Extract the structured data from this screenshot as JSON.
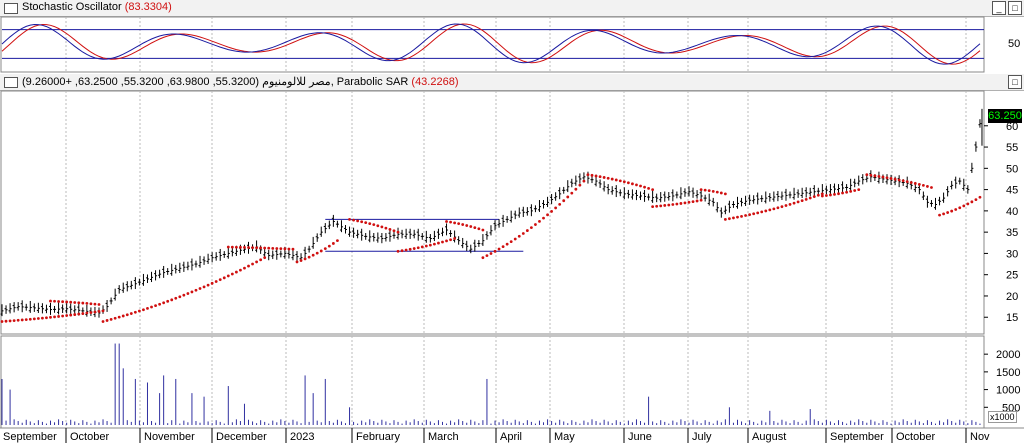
{
  "stoch": {
    "title": "Stochastic Oscillator",
    "value": "(83.3304)",
    "scale_label": "50"
  },
  "price": {
    "title_prefix": "مصر للالومنيوم",
    "ohlc": "(55.3200, 63.9800, 55.3200, 63.2500, +9.26000), Parabolic SAR",
    "sar_value": "(43.2268)",
    "last_price": "63.250"
  },
  "volume": {
    "multiplier": "x1000"
  },
  "colors": {
    "sar": "#d01010",
    "bar": "#000000",
    "volume": "#3030a0",
    "stoch_k": "#1a1aa0",
    "stoch_d": "#d01010",
    "channel": "#1a1aa0",
    "last_price_bg": "#000000",
    "last_price_fg": "#00ff00"
  },
  "chart_data": [
    {
      "type": "line",
      "name": "stochastic",
      "ylim": [
        0,
        100
      ],
      "levels": [
        20,
        80
      ],
      "yticks": [
        50
      ]
    },
    {
      "type": "ohlc",
      "name": "price",
      "ylim": [
        12,
        67
      ],
      "yticks": [
        15,
        20,
        25,
        30,
        35,
        40,
        45,
        50,
        55,
        60
      ],
      "months": [
        "September",
        "October",
        "November",
        "December",
        "2023",
        "February",
        "March",
        "April",
        "May",
        "June",
        "July",
        "August",
        "September",
        "October",
        "Nov"
      ],
      "channel": {
        "top": 38,
        "bottom": 30.5
      },
      "close_path": [
        [
          0,
          16.5
        ],
        [
          8,
          17.5
        ],
        [
          16,
          17.2
        ],
        [
          24,
          16.8
        ],
        [
          32,
          17.0
        ],
        [
          40,
          16.5
        ],
        [
          48,
          16.0
        ],
        [
          52,
          17.5
        ],
        [
          58,
          21.5
        ],
        [
          64,
          22.5
        ],
        [
          72,
          24.0
        ],
        [
          80,
          25.5
        ],
        [
          88,
          26.5
        ],
        [
          96,
          27.5
        ],
        [
          104,
          29.0
        ],
        [
          112,
          30.0
        ],
        [
          120,
          31.0
        ],
        [
          126,
          31.5
        ],
        [
          132,
          29.5
        ],
        [
          140,
          30.0
        ],
        [
          148,
          29.0
        ],
        [
          152,
          31.0
        ],
        [
          158,
          35.0
        ],
        [
          164,
          37.5
        ],
        [
          172,
          35.0
        ],
        [
          180,
          34.0
        ],
        [
          188,
          33.5
        ],
        [
          196,
          34.5
        ],
        [
          204,
          34.5
        ],
        [
          212,
          33.5
        ],
        [
          220,
          35.5
        ],
        [
          226,
          33.0
        ],
        [
          232,
          31.0
        ],
        [
          238,
          33.0
        ],
        [
          244,
          36.5
        ],
        [
          250,
          38.0
        ],
        [
          256,
          39.5
        ],
        [
          262,
          40.0
        ],
        [
          270,
          42.0
        ],
        [
          276,
          44.0
        ],
        [
          282,
          46.5
        ],
        [
          288,
          48.0
        ],
        [
          294,
          47.0
        ],
        [
          300,
          45.0
        ],
        [
          308,
          44.0
        ],
        [
          316,
          43.5
        ],
        [
          324,
          43.0
        ],
        [
          332,
          43.5
        ],
        [
          340,
          44.5
        ],
        [
          346,
          43.5
        ],
        [
          352,
          42.0
        ],
        [
          356,
          39.5
        ],
        [
          362,
          41.5
        ],
        [
          370,
          42.5
        ],
        [
          378,
          43.0
        ],
        [
          386,
          43.5
        ],
        [
          394,
          44.0
        ],
        [
          402,
          44.5
        ],
        [
          410,
          45.0
        ],
        [
          418,
          45.5
        ],
        [
          424,
          47.0
        ],
        [
          430,
          48.0
        ],
        [
          436,
          47.5
        ],
        [
          442,
          47.0
        ],
        [
          448,
          46.5
        ],
        [
          454,
          45.0
        ],
        [
          458,
          42.0
        ],
        [
          462,
          41.5
        ],
        [
          466,
          43.0
        ],
        [
          470,
          46.0
        ],
        [
          474,
          47.0
        ],
        [
          478,
          45.0
        ],
        [
          482,
          55.0
        ],
        [
          485,
          63.25
        ]
      ],
      "sar": [
        {
          "from": [
            0,
            14.0
          ],
          "to": [
            50,
            16.5
          ]
        },
        {
          "from": [
            24,
            18.8
          ],
          "to": [
            48,
            18.0
          ]
        },
        {
          "from": [
            50,
            14.0
          ],
          "to": [
            130,
            29.0
          ]
        },
        {
          "from": [
            112,
            31.5
          ],
          "to": [
            144,
            31.0
          ]
        },
        {
          "from": [
            146,
            28.0
          ],
          "to": [
            166,
            33.0
          ]
        },
        {
          "from": [
            172,
            38.0
          ],
          "to": [
            196,
            35.0
          ]
        },
        {
          "from": [
            196,
            30.5
          ],
          "to": [
            224,
            33.5
          ]
        },
        {
          "from": [
            220,
            37.5
          ],
          "to": [
            238,
            35.5
          ]
        },
        {
          "from": [
            238,
            29.0
          ],
          "to": [
            288,
            47.0
          ]
        },
        {
          "from": [
            290,
            48.5
          ],
          "to": [
            322,
            45.0
          ]
        },
        {
          "from": [
            322,
            41.0
          ],
          "to": [
            346,
            42.5
          ]
        },
        {
          "from": [
            346,
            45.0
          ],
          "to": [
            358,
            44.0
          ]
        },
        {
          "from": [
            358,
            38.0
          ],
          "to": [
            406,
            44.0
          ]
        },
        {
          "from": [
            406,
            43.5
          ],
          "to": [
            424,
            45.0
          ]
        },
        {
          "from": [
            428,
            48.5
          ],
          "to": [
            460,
            45.5
          ]
        },
        {
          "from": [
            464,
            39.0
          ],
          "to": [
            484,
            43.2
          ]
        }
      ],
      "last": 63.25
    },
    {
      "type": "bar",
      "name": "volume",
      "ylim": [
        0,
        2400
      ],
      "yticks": [
        500,
        1000,
        1500,
        2000
      ]
    }
  ]
}
